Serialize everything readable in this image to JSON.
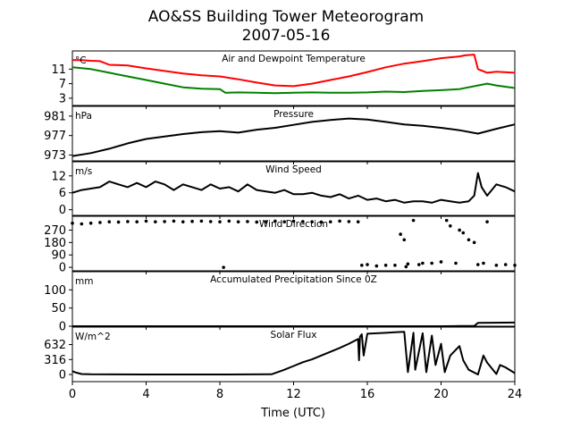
{
  "figure": {
    "title_line1": "AO&SS Building Tower Meteorogram",
    "title_line2": "2007-05-16",
    "xlabel": "Time (UTC)"
  },
  "chart_data": [
    {
      "type": "line",
      "title": "Air and Dewpoint Temperature",
      "ylabel": "°C",
      "xlim": [
        0,
        24
      ],
      "ylim": [
        1,
        16
      ],
      "yticks": [
        3,
        7,
        11
      ],
      "series": [
        {
          "color": "#ff0000",
          "x": [
            0,
            0.5,
            1,
            1.5,
            2,
            3,
            4,
            5,
            6,
            7,
            8,
            9,
            10,
            11,
            12,
            13,
            14,
            15,
            16,
            17,
            18,
            19,
            20,
            21,
            21.3,
            21.8,
            22,
            22.5,
            23,
            24
          ],
          "y": [
            13.5,
            13.5,
            13.3,
            13.2,
            12.2,
            12,
            11.2,
            10.5,
            9.8,
            9.3,
            9,
            8.2,
            7.3,
            6.5,
            6.3,
            7,
            8,
            9,
            10.2,
            11.5,
            12.5,
            13.2,
            14,
            14.5,
            14.8,
            15,
            11,
            10,
            10.3,
            10
          ]
        },
        {
          "color": "#008000",
          "x": [
            0,
            1,
            2,
            3,
            4,
            5,
            6,
            7,
            8,
            8.3,
            9,
            10,
            11,
            12,
            13,
            14,
            15,
            16,
            17,
            18,
            19,
            20,
            21,
            22,
            22.5,
            23,
            24
          ],
          "y": [
            11.5,
            11,
            10,
            9,
            8,
            7,
            6,
            5.6,
            5.5,
            4.5,
            4.6,
            4.5,
            4.4,
            4.5,
            4.6,
            4.5,
            4.5,
            4.6,
            4.8,
            4.7,
            5,
            5.2,
            5.5,
            6.5,
            7,
            6.5,
            5.8
          ]
        }
      ]
    },
    {
      "type": "line",
      "title": "Pressure",
      "ylabel": "hPa",
      "xlim": [
        0,
        24
      ],
      "ylim": [
        971.8,
        983
      ],
      "yticks": [
        973,
        977,
        981
      ],
      "series": [
        {
          "color": "#000000",
          "x": [
            0,
            1,
            2,
            3,
            4,
            5,
            6,
            7,
            8,
            9,
            10,
            11,
            12,
            13,
            14,
            15,
            16,
            17,
            18,
            19,
            20,
            21,
            22,
            23,
            24
          ],
          "y": [
            972.8,
            973.4,
            974.3,
            975.4,
            976.3,
            976.8,
            977.3,
            977.7,
            977.9,
            977.6,
            978.2,
            978.6,
            979.2,
            979.8,
            980.2,
            980.5,
            980.3,
            979.8,
            979.3,
            979,
            978.6,
            978.1,
            977.4,
            978.4,
            979.3
          ]
        }
      ]
    },
    {
      "type": "line",
      "title": "Wind Speed",
      "ylabel": "m/s",
      "xlim": [
        0,
        24
      ],
      "ylim": [
        -2,
        17
      ],
      "yticks": [
        0,
        6,
        12
      ],
      "series": [
        {
          "color": "#000000",
          "x": [
            0,
            0.5,
            1,
            1.5,
            2,
            2.5,
            3,
            3.5,
            4,
            4.5,
            5,
            5.5,
            6,
            6.5,
            7,
            7.5,
            8,
            8.5,
            9,
            9.5,
            10,
            10.5,
            11,
            11.5,
            12,
            12.5,
            13,
            13.5,
            14,
            14.5,
            15,
            15.5,
            16,
            16.5,
            17,
            17.5,
            18,
            18.5,
            19,
            19.5,
            20,
            20.5,
            21,
            21.5,
            21.8,
            22,
            22.2,
            22.5,
            23,
            23.5,
            24
          ],
          "y": [
            6,
            7,
            7.5,
            8,
            10,
            9,
            8,
            9.5,
            8,
            10,
            9,
            7,
            9,
            8,
            7,
            9,
            7.5,
            8,
            6.5,
            9,
            7,
            6.5,
            6,
            7,
            5.5,
            5.5,
            6,
            5,
            4.5,
            5.5,
            4,
            5,
            3.5,
            4,
            3,
            3.5,
            2.5,
            3,
            3,
            2.5,
            3.5,
            3,
            2.5,
            3,
            5,
            13,
            8,
            5,
            9,
            8,
            6.5
          ]
        }
      ]
    },
    {
      "type": "scatter",
      "title": "Wind Direction",
      "ylabel": "",
      "xlim": [
        0,
        24
      ],
      "ylim": [
        -25,
        370
      ],
      "yticks": [
        0,
        90,
        180,
        270
      ],
      "series": [
        {
          "color": "#000000",
          "x": [
            0,
            0.5,
            1,
            1.5,
            2,
            2.5,
            3,
            3.5,
            4,
            4.5,
            5,
            5.5,
            6,
            6.5,
            7,
            7.5,
            8,
            8.2,
            8.5,
            9,
            9.5,
            10,
            10.5,
            11,
            11.5,
            12,
            12.5,
            13,
            13.5,
            14,
            14.5,
            15,
            15.5,
            15.7,
            16,
            16.5,
            17,
            17.5,
            17.8,
            18,
            18.1,
            18.2,
            18.5,
            18.8,
            19,
            19.5,
            20,
            20.3,
            20.5,
            20.8,
            21,
            21.2,
            21.5,
            21.8,
            22,
            22.3,
            22.5,
            23,
            23.5,
            24
          ],
          "y": [
            320,
            315,
            320,
            325,
            330,
            328,
            332,
            330,
            335,
            330,
            332,
            335,
            330,
            333,
            335,
            332,
            330,
            0,
            335,
            330,
            332,
            328,
            330,
            335,
            330,
            335,
            332,
            330,
            328,
            330,
            335,
            332,
            330,
            15,
            20,
            10,
            15,
            15,
            240,
            200,
            5,
            25,
            340,
            20,
            30,
            30,
            40,
            340,
            300,
            30,
            270,
            250,
            200,
            180,
            20,
            30,
            330,
            15,
            20,
            15
          ]
        }
      ]
    },
    {
      "type": "line",
      "title": "Accumulated Precipitation Since 0Z",
      "ylabel": "mm",
      "xlim": [
        0,
        24
      ],
      "ylim": [
        0,
        150
      ],
      "yticks": [
        0,
        50,
        100
      ],
      "series": [
        {
          "color": "#000000",
          "x": [
            0,
            20,
            21,
            21.8,
            22,
            24
          ],
          "y": [
            0,
            0,
            0.5,
            1,
            9,
            10
          ]
        }
      ]
    },
    {
      "type": "line",
      "title": "Solar Flux",
      "ylabel": "W/m^2",
      "xlim": [
        0,
        24
      ],
      "ylim": [
        -150,
        1000
      ],
      "yticks": [
        0,
        316,
        632
      ],
      "series": [
        {
          "color": "#000000",
          "x": [
            0,
            0.2,
            0.5,
            1,
            4,
            8,
            10.8,
            11.5,
            12,
            12.5,
            13,
            13.5,
            14,
            14.5,
            15,
            15.5,
            15.55,
            15.6,
            15.7,
            15.8,
            16,
            16.5,
            17,
            17.5,
            18,
            18.2,
            18.5,
            18.6,
            19,
            19.2,
            19.5,
            19.7,
            20,
            20.2,
            20.5,
            21,
            21.2,
            21.5,
            22,
            22.3,
            22.5,
            23,
            23.2,
            23.5,
            24
          ],
          "y": [
            70,
            40,
            10,
            5,
            0,
            0,
            5,
            100,
            180,
            260,
            320,
            400,
            480,
            560,
            650,
            750,
            300,
            800,
            850,
            400,
            860,
            870,
            880,
            890,
            900,
            50,
            880,
            100,
            870,
            50,
            820,
            200,
            650,
            50,
            400,
            600,
            300,
            100,
            0,
            400,
            250,
            10,
            200,
            150,
            30
          ]
        }
      ]
    }
  ],
  "x_ticks": [
    0,
    4,
    8,
    12,
    16,
    20,
    24
  ]
}
